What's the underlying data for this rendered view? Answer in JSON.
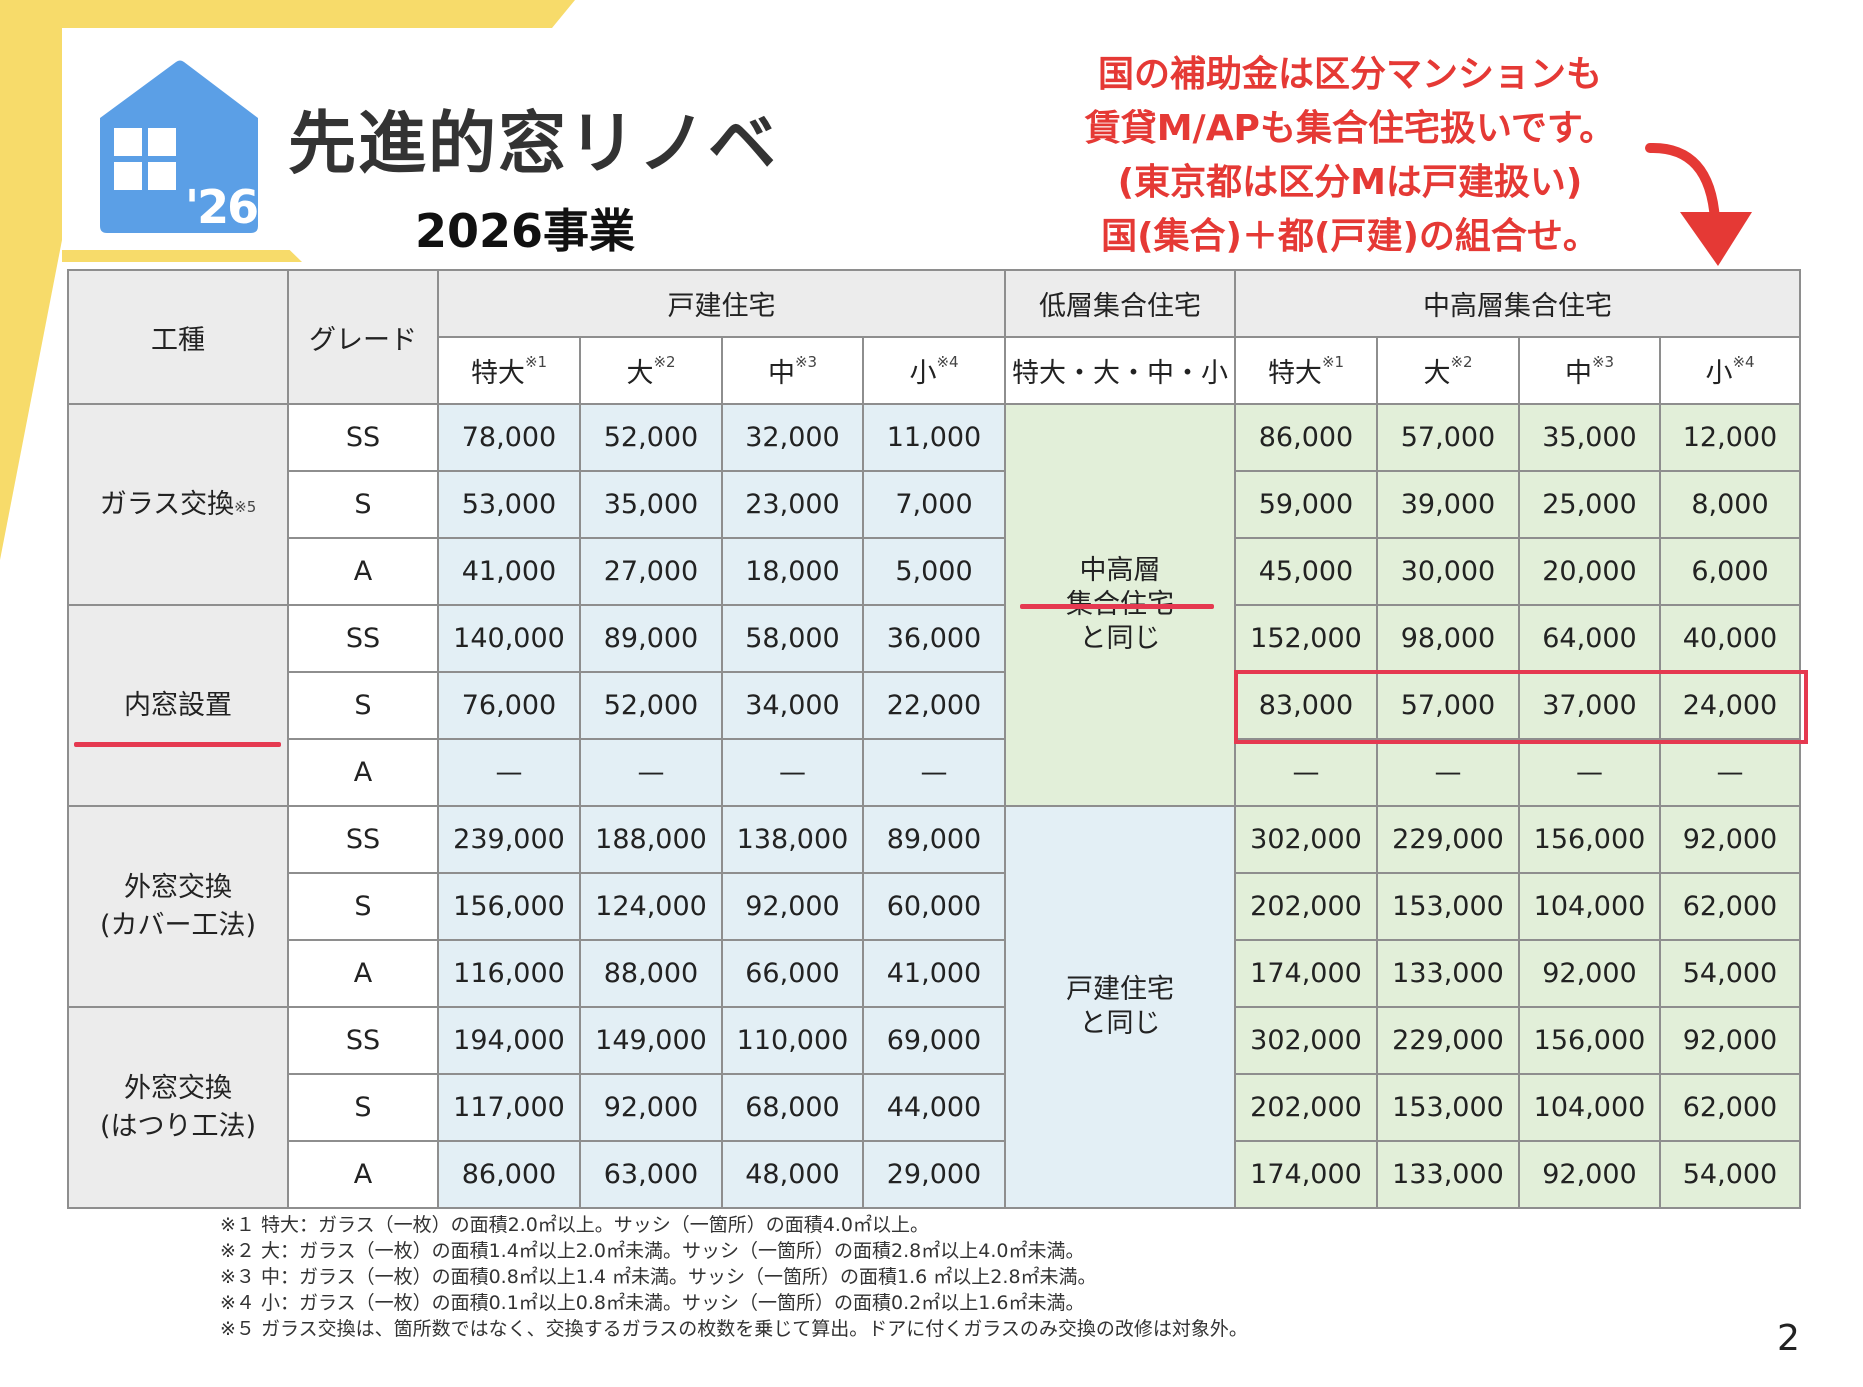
{
  "header": {
    "logo_year": "'26",
    "title": "先進的窓リノベ",
    "subtitle": "2026事業"
  },
  "note": {
    "lines": [
      "国の補助金は区分マンションも",
      "賃貸M/APも集合住宅扱いです。",
      "(東京都は区分Mは戸建扱い)",
      "国(集合)＋都(戸建)の組合せ。"
    ]
  },
  "colors": {
    "accent_red": "#e53950",
    "yellow": "#f7db6a",
    "blue_cell": "#e3eff5",
    "green_cell": "#e2efd9",
    "logo_blue": "#5b9fe6"
  },
  "table": {
    "headers": {
      "work_type": "工種",
      "grade": "グレード",
      "detached": "戸建住宅",
      "low_rise": "低層集合住宅",
      "mid_high_rise": "中高層集合住宅",
      "size_xl": "特大",
      "size_l": "大",
      "size_m": "中",
      "size_s": "小",
      "note1": "※1",
      "note2": "※2",
      "note3": "※3",
      "note4": "※4",
      "low_rise_sizes": "特大・大・中・小"
    },
    "merged": {
      "same_as_mid_l1": "中高層",
      "same_as_mid_l2": "集合住宅",
      "same_as_mid_l3": "と同じ",
      "same_as_detached_l1": "戸建住宅",
      "same_as_detached_l2": "と同じ"
    },
    "categories": {
      "glass": "ガラス交換",
      "glass_note": "※5",
      "inner": "内窓設置",
      "outer_cover_l1": "外窓交換",
      "outer_cover_l2": "(カバー工法)",
      "outer_hatsuri_l1": "外窓交換",
      "outer_hatsuri_l2": "(はつり工法)"
    },
    "rows": [
      {
        "grade": "SS",
        "d": [
          "78,000",
          "52,000",
          "32,000",
          "11,000"
        ],
        "m": [
          "86,000",
          "57,000",
          "35,000",
          "12,000"
        ]
      },
      {
        "grade": "S",
        "d": [
          "53,000",
          "35,000",
          "23,000",
          "7,000"
        ],
        "m": [
          "59,000",
          "39,000",
          "25,000",
          "8,000"
        ]
      },
      {
        "grade": "A",
        "d": [
          "41,000",
          "27,000",
          "18,000",
          "5,000"
        ],
        "m": [
          "45,000",
          "30,000",
          "20,000",
          "6,000"
        ]
      },
      {
        "grade": "SS",
        "d": [
          "140,000",
          "89,000",
          "58,000",
          "36,000"
        ],
        "m": [
          "152,000",
          "98,000",
          "64,000",
          "40,000"
        ]
      },
      {
        "grade": "S",
        "d": [
          "76,000",
          "52,000",
          "34,000",
          "22,000"
        ],
        "m": [
          "83,000",
          "57,000",
          "37,000",
          "24,000"
        ]
      },
      {
        "grade": "A",
        "d": [
          "—",
          "—",
          "—",
          "—"
        ],
        "m": [
          "—",
          "—",
          "—",
          "—"
        ]
      },
      {
        "grade": "SS",
        "d": [
          "239,000",
          "188,000",
          "138,000",
          "89,000"
        ],
        "m": [
          "302,000",
          "229,000",
          "156,000",
          "92,000"
        ]
      },
      {
        "grade": "S",
        "d": [
          "156,000",
          "124,000",
          "92,000",
          "60,000"
        ],
        "m": [
          "202,000",
          "153,000",
          "104,000",
          "62,000"
        ]
      },
      {
        "grade": "A",
        "d": [
          "116,000",
          "88,000",
          "66,000",
          "41,000"
        ],
        "m": [
          "174,000",
          "133,000",
          "92,000",
          "54,000"
        ]
      },
      {
        "grade": "SS",
        "d": [
          "194,000",
          "149,000",
          "110,000",
          "69,000"
        ],
        "m": [
          "302,000",
          "229,000",
          "156,000",
          "92,000"
        ]
      },
      {
        "grade": "S",
        "d": [
          "117,000",
          "92,000",
          "68,000",
          "44,000"
        ],
        "m": [
          "202,000",
          "153,000",
          "104,000",
          "62,000"
        ]
      },
      {
        "grade": "A",
        "d": [
          "86,000",
          "63,000",
          "48,000",
          "29,000"
        ],
        "m": [
          "174,000",
          "133,000",
          "92,000",
          "54,000"
        ]
      }
    ]
  },
  "footnotes": [
    "※１ 特大：ガラス（一枚）の面積2.0㎡以上。サッシ（一箇所）の面積4.0㎡以上。",
    "※２ 大：ガラス（一枚）の面積1.4㎡以上2.0㎡未満。サッシ（一箇所）の面積2.8㎡以上4.0㎡未満。",
    "※３ 中：ガラス（一枚）の面積0.8㎡以上1.4 ㎡未満。サッシ（一箇所）の面積1.6 ㎡以上2.8㎡未満。",
    "※４ 小：ガラス（一枚）の面積0.1㎡以上0.8㎡未満。サッシ（一箇所）の面積0.2㎡以上1.6㎡未満。",
    "※５ ガラス交換は、箇所数ではなく、交換するガラスの枚数を乗じて算出。ドアに付くガラスのみ交換の改修は対象外。"
  ],
  "page_number": "2"
}
